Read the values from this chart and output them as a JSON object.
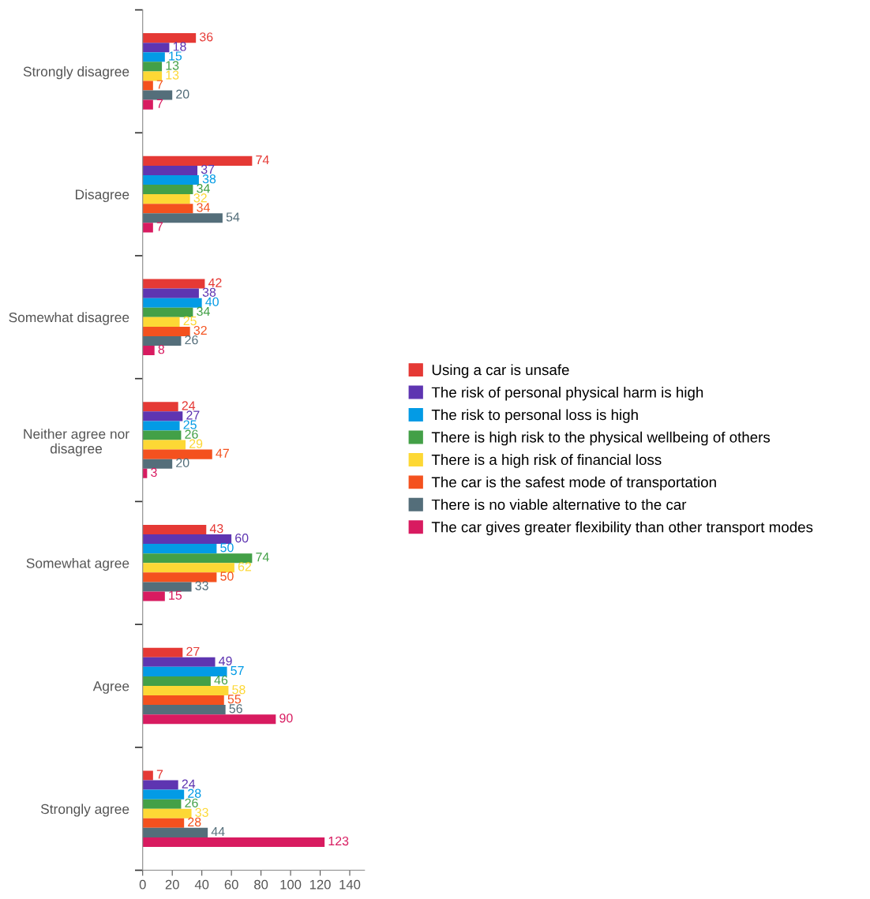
{
  "chart_data": {
    "type": "bar",
    "orientation": "horizontal",
    "categories": [
      "Strongly disagree",
      "Disagree",
      "Somewhat disagree",
      "Neither agree nor\ndisagree",
      "Somewhat agree",
      "Agree",
      "Strongly agree"
    ],
    "series": [
      {
        "name": "Using a car is unsafe",
        "color": "#e53935",
        "values": [
          36,
          74,
          42,
          24,
          43,
          27,
          7
        ]
      },
      {
        "name": "The risk of personal physical harm is high",
        "color": "#5e35b1",
        "values": [
          18,
          37,
          38,
          27,
          60,
          49,
          24
        ]
      },
      {
        "name": "The risk to personal loss is high",
        "color": "#039be5",
        "values": [
          15,
          38,
          40,
          25,
          50,
          57,
          28
        ]
      },
      {
        "name": "There is high risk to the physical wellbeing of others",
        "color": "#43a047",
        "values": [
          13,
          34,
          34,
          26,
          74,
          46,
          26
        ]
      },
      {
        "name": "There is a high risk of financial loss",
        "color": "#fdd835",
        "values": [
          13,
          32,
          25,
          29,
          62,
          58,
          33
        ]
      },
      {
        "name": "The car is the safest mode of transportation",
        "color": "#f4511e",
        "values": [
          7,
          34,
          32,
          47,
          50,
          55,
          28
        ]
      },
      {
        "name": "There is no viable alternative to the car",
        "color": "#546e7a",
        "values": [
          20,
          54,
          26,
          20,
          33,
          56,
          44
        ]
      },
      {
        "name": "The car gives greater flexibility than other transport modes",
        "color": "#d81b60",
        "values": [
          7,
          7,
          8,
          3,
          15,
          90,
          123
        ]
      }
    ],
    "xlim": [
      0,
      150
    ],
    "xticks": [
      0,
      20,
      40,
      60,
      80,
      100,
      120,
      140
    ],
    "data_labels": true,
    "grid": false,
    "legend": "right"
  }
}
